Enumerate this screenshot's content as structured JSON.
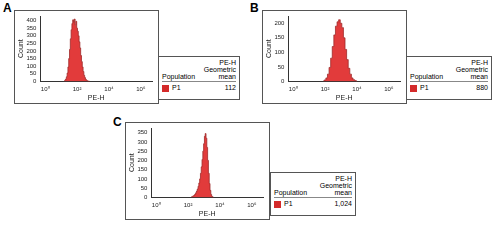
{
  "chart_data": [
    {
      "type": "area",
      "title": "A",
      "x_label": "PE-H",
      "y_label": "Count",
      "log": "x",
      "grid": false,
      "color": "#e23b3b",
      "x": [
        15.8,
        17.8,
        20,
        22.4,
        25.1,
        28.2,
        31.6,
        35.5,
        39.8,
        44.7,
        50.1,
        56.2,
        63.1,
        70.8,
        79.4,
        89.1,
        100,
        112,
        126,
        141,
        158,
        178,
        200,
        224,
        251,
        282,
        316,
        355,
        398,
        447,
        501,
        562,
        631
      ],
      "values": [
        3,
        8,
        15,
        30,
        55,
        95,
        150,
        210,
        280,
        340,
        380,
        405,
        390,
        410,
        370,
        395,
        350,
        330,
        300,
        260,
        220,
        170,
        130,
        95,
        65,
        40,
        25,
        14,
        8,
        4,
        2,
        1,
        0
      ],
      "xlim": [
        0.5,
        5000000
      ],
      "xticks": [
        {
          "value": 1,
          "label": "10⁰"
        },
        {
          "value": 100,
          "label": "10²"
        },
        {
          "value": 10000,
          "label": "10⁴"
        },
        {
          "value": 1000000,
          "label": "10⁶"
        }
      ],
      "ylim": [
        0,
        430
      ],
      "yticks": [
        0,
        50,
        100,
        150,
        200,
        250,
        300,
        350,
        400
      ],
      "table": {
        "columns": [
          "Population",
          [
            "PE-H",
            "Geometric mean"
          ]
        ],
        "rows": [
          {
            "name": "P1",
            "color": "#d42a2a",
            "value": 112
          }
        ]
      }
    },
    {
      "type": "area",
      "title": "B",
      "x_label": "PE-H",
      "y_label": "Count",
      "log": "x",
      "grid": false,
      "color": "#e23b3b",
      "x": [
        79,
        100,
        126,
        158,
        200,
        251,
        316,
        398,
        501,
        631,
        794,
        1000,
        1259,
        1585,
        1995,
        2512,
        3162,
        3981,
        5012,
        6310,
        7943,
        10000
      ],
      "values": [
        2,
        5,
        12,
        25,
        48,
        80,
        120,
        160,
        190,
        205,
        212,
        200,
        185,
        150,
        110,
        75,
        45,
        25,
        12,
        6,
        3,
        1
      ],
      "xlim": [
        0.5,
        5000000
      ],
      "xticks": [
        {
          "value": 1,
          "label": "10⁰"
        },
        {
          "value": 100,
          "label": "10²"
        },
        {
          "value": 10000,
          "label": "10⁴"
        },
        {
          "value": 1000000,
          "label": "10⁶"
        }
      ],
      "ylim": [
        0,
        225
      ],
      "yticks": [
        0,
        50,
        100,
        150,
        200
      ],
      "table": {
        "columns": [
          "Population",
          [
            "PE-H",
            "Geometric mean"
          ]
        ],
        "rows": [
          {
            "name": "P1",
            "color": "#d42a2a",
            "value": 880
          }
        ]
      }
    },
    {
      "type": "area",
      "title": "C",
      "x_label": "PE-H",
      "y_label": "Count",
      "log": "x",
      "grid": false,
      "color": "#e23b3b",
      "x": [
        158,
        178,
        200,
        224,
        251,
        282,
        316,
        355,
        398,
        447,
        501,
        562,
        631,
        708,
        794,
        891,
        1000,
        1122,
        1259,
        1413,
        1585,
        1778,
        1995,
        2239,
        2512,
        2818,
        3162,
        3548,
        3981
      ],
      "values": [
        2,
        4,
        6,
        9,
        13,
        18,
        25,
        34,
        45,
        60,
        78,
        100,
        130,
        165,
        205,
        250,
        290,
        330,
        345,
        320,
        270,
        200,
        130,
        75,
        38,
        16,
        6,
        2,
        1
      ],
      "xlim": [
        0.5,
        5000000
      ],
      "xticks": [
        {
          "value": 1,
          "label": "10⁰"
        },
        {
          "value": 100,
          "label": "10²"
        },
        {
          "value": 10000,
          "label": "10⁴"
        },
        {
          "value": 1000000,
          "label": "10⁶"
        }
      ],
      "ylim": [
        0,
        375
      ],
      "yticks": [
        0,
        50,
        100,
        150,
        200,
        250,
        300,
        350
      ],
      "table": {
        "columns": [
          "Population",
          [
            "PE-H",
            "Geometric mean"
          ]
        ],
        "rows": [
          {
            "name": "P1",
            "color": "#d42a2a",
            "value": 1024,
            "label": "1,024"
          }
        ]
      }
    }
  ]
}
